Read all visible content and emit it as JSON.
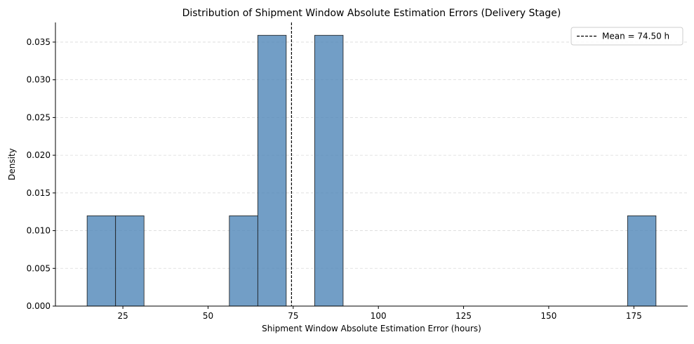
{
  "chart_data": {
    "type": "bar",
    "subtype": "histogram",
    "title": "Distribution of Shipment Window Absolute Estimation Errors (Delivery Stage)",
    "xlabel": "Shipment Window Absolute Estimation Error (hours)",
    "ylabel": "Density",
    "xlim": [
      5.2,
      190.8
    ],
    "ylim": [
      0,
      0.0376
    ],
    "xticks": [
      25,
      50,
      75,
      100,
      125,
      150,
      175
    ],
    "yticks": [
      0.0,
      0.005,
      0.01,
      0.015,
      0.02,
      0.025,
      0.03,
      0.035
    ],
    "ytick_labels": [
      "0.000",
      "0.005",
      "0.010",
      "0.015",
      "0.020",
      "0.025",
      "0.030",
      "0.035"
    ],
    "grid": "y-dashed",
    "bar_color": "#4f86b8",
    "bins": [
      {
        "x0": 14.5,
        "x1": 22.85,
        "value": 0.01197
      },
      {
        "x0": 22.85,
        "x1": 31.2,
        "value": 0.01197
      },
      {
        "x0": 56.25,
        "x1": 64.6,
        "value": 0.01197
      },
      {
        "x0": 64.6,
        "x1": 72.95,
        "value": 0.0359
      },
      {
        "x0": 81.3,
        "x1": 89.65,
        "value": 0.0359
      },
      {
        "x0": 173.15,
        "x1": 181.5,
        "value": 0.01197
      }
    ],
    "mean_line": {
      "value": 74.5,
      "style": "dashed",
      "color": "#000000"
    },
    "legend": {
      "position": "top-right",
      "entries": [
        "Mean = 74.50 h"
      ]
    }
  }
}
